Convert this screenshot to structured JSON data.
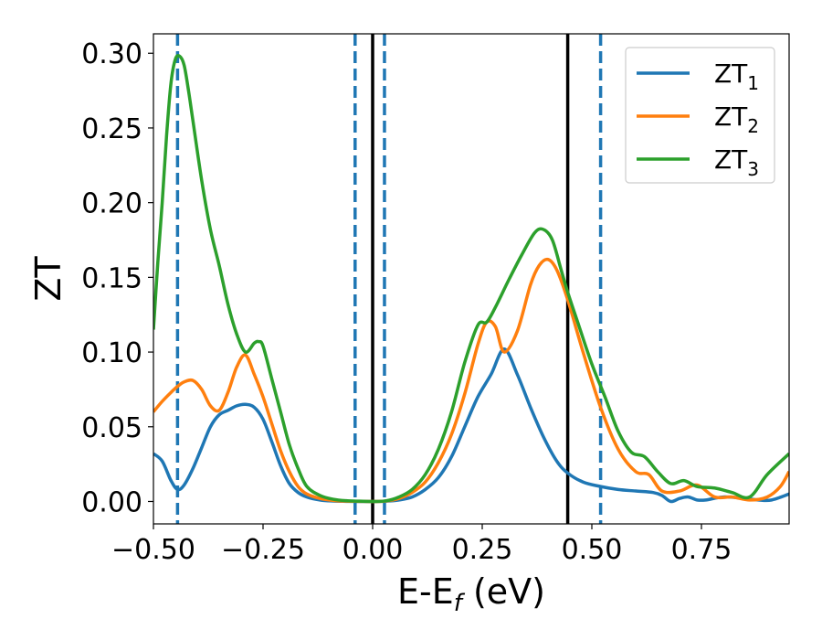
{
  "chart_data": {
    "type": "line",
    "xlabel": "E-E",
    "xlabel_sub": "f",
    "xlabel_unit": " (eV)",
    "ylabel": "ZT",
    "xlim": [
      -0.5,
      0.95
    ],
    "ylim": [
      -0.015,
      0.313
    ],
    "xticks": [
      -0.5,
      -0.25,
      0.0,
      0.25,
      0.5,
      0.75
    ],
    "xtick_labels": [
      "−0.50",
      "−0.25",
      "0.00",
      "0.25",
      "0.50",
      "0.75"
    ],
    "yticks": [
      0.0,
      0.05,
      0.1,
      0.15,
      0.2,
      0.25,
      0.3
    ],
    "ytick_labels": [
      "0.00",
      "0.05",
      "0.10",
      "0.15",
      "0.20",
      "0.25",
      "0.30"
    ],
    "grid": false,
    "legend_position": "top-right",
    "vlines_solid": [
      0.0,
      0.445
    ],
    "vlines_dashed": [
      -0.445,
      -0.04,
      0.027,
      0.52
    ],
    "series": [
      {
        "name": "ZT",
        "name_sub": "1",
        "color": "#1f77b4",
        "x": [
          -0.5,
          -0.48,
          -0.46,
          -0.445,
          -0.43,
          -0.41,
          -0.39,
          -0.37,
          -0.35,
          -0.33,
          -0.31,
          -0.29,
          -0.27,
          -0.25,
          -0.23,
          -0.21,
          -0.19,
          -0.17,
          -0.15,
          -0.12,
          -0.09,
          -0.06,
          -0.03,
          0.0,
          0.03,
          0.06,
          0.09,
          0.12,
          0.15,
          0.18,
          0.21,
          0.24,
          0.27,
          0.3,
          0.33,
          0.36,
          0.39,
          0.42,
          0.445,
          0.48,
          0.52,
          0.56,
          0.6,
          0.64,
          0.66,
          0.68,
          0.7,
          0.72,
          0.74,
          0.76,
          0.8,
          0.85,
          0.88,
          0.91,
          0.95
        ],
        "y": [
          0.032,
          0.027,
          0.014,
          0.008,
          0.011,
          0.022,
          0.036,
          0.05,
          0.058,
          0.061,
          0.064,
          0.065,
          0.063,
          0.055,
          0.04,
          0.024,
          0.012,
          0.006,
          0.003,
          0.001,
          0.0003,
          0.0001,
          0.0,
          0.0,
          0.0002,
          0.001,
          0.003,
          0.008,
          0.016,
          0.03,
          0.05,
          0.07,
          0.085,
          0.102,
          0.085,
          0.063,
          0.043,
          0.027,
          0.019,
          0.013,
          0.01,
          0.008,
          0.007,
          0.006,
          0.004,
          0.0,
          0.002,
          0.003,
          0.001,
          0.001,
          0.003,
          0.002,
          0.001,
          0.001,
          0.005
        ]
      },
      {
        "name": "ZT",
        "name_sub": "2",
        "color": "#ff7f0e",
        "x": [
          -0.5,
          -0.48,
          -0.46,
          -0.445,
          -0.43,
          -0.41,
          -0.39,
          -0.37,
          -0.35,
          -0.33,
          -0.31,
          -0.29,
          -0.27,
          -0.25,
          -0.23,
          -0.21,
          -0.19,
          -0.17,
          -0.15,
          -0.12,
          -0.09,
          -0.06,
          -0.03,
          0.0,
          0.03,
          0.06,
          0.09,
          0.12,
          0.15,
          0.18,
          0.21,
          0.24,
          0.26,
          0.28,
          0.3,
          0.33,
          0.36,
          0.38,
          0.4,
          0.42,
          0.445,
          0.48,
          0.52,
          0.56,
          0.6,
          0.63,
          0.66,
          0.7,
          0.74,
          0.78,
          0.82,
          0.86,
          0.9,
          0.93,
          0.95
        ],
        "y": [
          0.06,
          0.067,
          0.073,
          0.077,
          0.08,
          0.081,
          0.075,
          0.064,
          0.061,
          0.073,
          0.09,
          0.098,
          0.085,
          0.07,
          0.052,
          0.034,
          0.02,
          0.01,
          0.005,
          0.002,
          0.0007,
          0.0002,
          0.0001,
          0.0,
          0.0003,
          0.002,
          0.006,
          0.013,
          0.026,
          0.045,
          0.072,
          0.105,
          0.12,
          0.117,
          0.1,
          0.114,
          0.145,
          0.158,
          0.162,
          0.155,
          0.135,
          0.1,
          0.063,
          0.035,
          0.02,
          0.018,
          0.007,
          0.007,
          0.011,
          0.003,
          0.003,
          0.001,
          0.003,
          0.01,
          0.02
        ]
      },
      {
        "name": "ZT",
        "name_sub": "3",
        "color": "#2ca02c",
        "x": [
          -0.5,
          -0.49,
          -0.48,
          -0.47,
          -0.46,
          -0.45,
          -0.44,
          -0.43,
          -0.42,
          -0.41,
          -0.39,
          -0.37,
          -0.35,
          -0.33,
          -0.31,
          -0.29,
          -0.27,
          -0.26,
          -0.25,
          -0.23,
          -0.21,
          -0.19,
          -0.17,
          -0.15,
          -0.12,
          -0.09,
          -0.06,
          -0.03,
          0.0,
          0.03,
          0.06,
          0.09,
          0.12,
          0.15,
          0.18,
          0.21,
          0.24,
          0.26,
          0.28,
          0.31,
          0.34,
          0.37,
          0.39,
          0.41,
          0.43,
          0.445,
          0.47,
          0.5,
          0.53,
          0.56,
          0.59,
          0.62,
          0.65,
          0.68,
          0.71,
          0.74,
          0.78,
          0.82,
          0.86,
          0.9,
          0.95
        ],
        "y": [
          0.115,
          0.16,
          0.2,
          0.245,
          0.28,
          0.296,
          0.298,
          0.292,
          0.275,
          0.255,
          0.215,
          0.182,
          0.158,
          0.132,
          0.112,
          0.1,
          0.106,
          0.107,
          0.104,
          0.082,
          0.06,
          0.038,
          0.022,
          0.01,
          0.004,
          0.0015,
          0.0005,
          0.0002,
          0.0,
          0.0004,
          0.003,
          0.008,
          0.018,
          0.035,
          0.06,
          0.093,
          0.118,
          0.12,
          0.13,
          0.148,
          0.165,
          0.18,
          0.182,
          0.175,
          0.155,
          0.14,
          0.118,
          0.092,
          0.07,
          0.047,
          0.033,
          0.03,
          0.02,
          0.012,
          0.014,
          0.01,
          0.009,
          0.006,
          0.003,
          0.018,
          0.032
        ]
      }
    ]
  }
}
